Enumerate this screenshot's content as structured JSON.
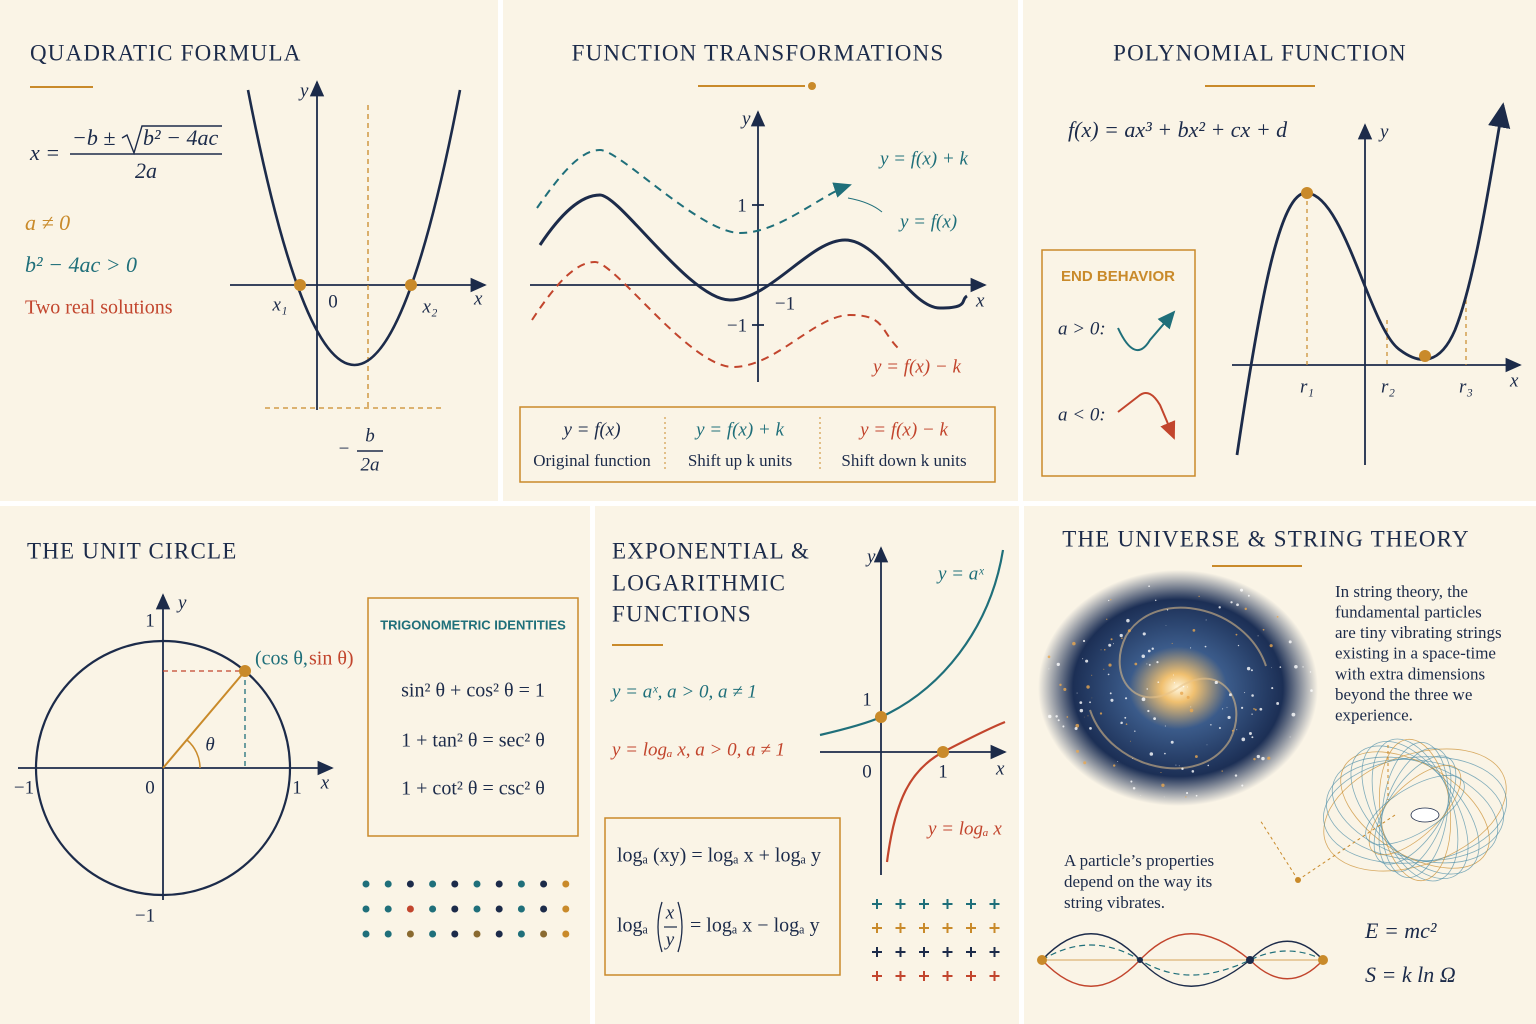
{
  "quadratic": {
    "title": "QUADRATIC FORMULA",
    "lhs": "x =",
    "numerator_left": "−b ±",
    "radicand": "b² − 4ac",
    "denominator": "2a",
    "condition_a": "a ≠ 0",
    "condition_discriminant": "b² − 4ac > 0",
    "result": "Two real solutions",
    "axis_y": "y",
    "axis_x": "x",
    "origin": "0",
    "root_1": "x₁",
    "root_2": "x₂",
    "vertex_minus": "−",
    "vertex_numerator": "b",
    "vertex_denominator": "2a"
  },
  "transformations": {
    "title": "FUNCTION TRANSFORMATIONS",
    "axis_y": "y",
    "axis_x": "x",
    "tick_1": "1",
    "tick_minus_1": "−1",
    "tick_x_minus_1": "−1",
    "label_up": "y = f(x) + k",
    "label_base": "y = f(x)",
    "label_down": "y = f(x) − k",
    "legend": [
      {
        "formula": "y = f(x)",
        "caption": "Original function"
      },
      {
        "formula": "y = f(x) + k",
        "caption": "Shift up k units"
      },
      {
        "formula": "y = f(x) − k",
        "caption": "Shift down k units"
      }
    ]
  },
  "polynomial": {
    "title": "POLYNOMIAL FUNCTION",
    "formula": "f(x) = ax³ + bx² + cx + d",
    "end_behavior_title": "END BEHAVIOR",
    "positive_case": "a > 0:",
    "negative_case": "a < 0:",
    "axis_y": "y",
    "axis_x": "x",
    "roots": [
      "r₁",
      "r₂",
      "r₃"
    ]
  },
  "unit_circle": {
    "title": "THE UNIT CIRCLE",
    "tick_top": "1",
    "axis_y": "y",
    "tick_left": "−1",
    "origin": "0",
    "tick_right": "1",
    "axis_x": "x",
    "tick_bottom": "−1",
    "point_cos": "(cos θ,",
    "point_sin": "sin θ)",
    "angle": "θ",
    "identities_title": "TRIGONOMETRIC IDENTITIES",
    "identities": [
      "sin² θ + cos² θ = 1",
      "1 + tan² θ = sec² θ",
      "1 + cot² θ = csc² θ"
    ]
  },
  "exp_log": {
    "title": [
      "EXPONENTIAL &",
      "LOGARITHMIC",
      "FUNCTIONS"
    ],
    "exp_definition": "y = aˣ, a > 0, a ≠ 1",
    "log_definition": "y = logₐ x, a > 0, a ≠ 1",
    "axis_y": "y",
    "axis_x": "x",
    "origin": "0",
    "tick_x_1": "1",
    "tick_y_1": "1",
    "exp_label": "y = aˣ",
    "log_label": "y = logₐ x",
    "product_rule": "logₐ (xy) = logₐ x + logₐ y",
    "quotient_log": "logₐ",
    "quotient_numerator": "x",
    "quotient_denominator": "y",
    "quotient_rhs": "= logₐ x − logₐ y"
  },
  "string_theory": {
    "title": "THE UNIVERSE & STRING THEORY",
    "description": [
      "In string theory, the",
      "fundamental particles",
      "are tiny vibrating strings",
      "existing in a space-time",
      "with extra dimensions",
      "beyond the three we",
      "experience."
    ],
    "caption": [
      "A particle’s properties",
      "depend on the way its",
      "string vibrates."
    ],
    "energy": "E = mc²",
    "entropy": "S = k ln Ω"
  }
}
